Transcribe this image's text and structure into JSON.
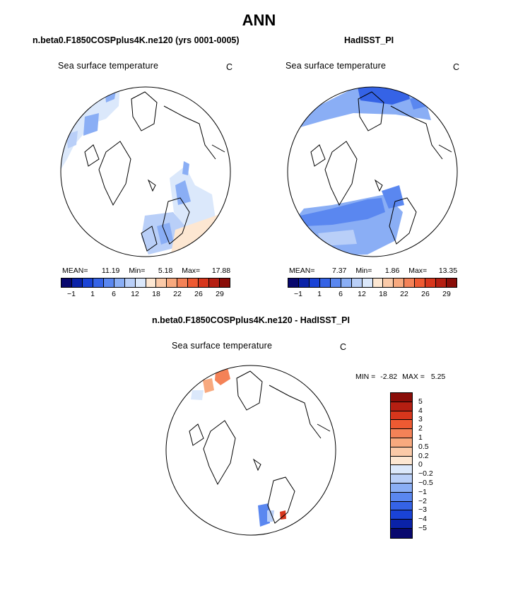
{
  "title": "ANN",
  "panels": {
    "left": {
      "title": "n.beta0.F1850COSPplus4K.ne120 (yrs 0001-0005)",
      "variable": "Sea surface temperature",
      "units": "C",
      "mean_label": "MEAN=",
      "mean": "11.19",
      "min_label": "Min=",
      "min": "5.18",
      "max_label": "Max=",
      "max": "17.88"
    },
    "right": {
      "title": "HadISST_PI",
      "variable": "Sea surface temperature",
      "units": "C",
      "mean_label": "MEAN=",
      "mean": "7.37",
      "min_label": "Min=",
      "min": "1.86",
      "max_label": "Max=",
      "max": "13.35"
    },
    "diff": {
      "title": "n.beta0.F1850COSPplus4K.ne120 - HadISST_PI",
      "variable": "Sea surface temperature",
      "units": "C",
      "min_label": "MIN =",
      "min": "-2.82",
      "max_label": "MAX =",
      "max": "5.25"
    }
  },
  "colorbar_abs": {
    "colors": [
      "#08086e",
      "#0a22a8",
      "#1a43d6",
      "#3563e6",
      "#5a87f0",
      "#8aaef5",
      "#b9cff8",
      "#dbe8fb",
      "#fde7d2",
      "#fbcaa8",
      "#f8a97e",
      "#f48257",
      "#ee5a32",
      "#d7361c",
      "#b51f12",
      "#8a0d08"
    ],
    "labels": [
      "-1",
      "1",
      "6",
      "12",
      "18",
      "22",
      "26",
      "29"
    ]
  },
  "colorbar_diff": {
    "colors": [
      "#8a0d08",
      "#b51f12",
      "#d7361c",
      "#ee5a32",
      "#f48257",
      "#f8a97e",
      "#fbcaa8",
      "#fde7d2",
      "#dbe8fb",
      "#b9cff8",
      "#8aaef5",
      "#5a87f0",
      "#3563e6",
      "#1a43d6",
      "#0a22a8",
      "#08086e"
    ],
    "labels": [
      "5",
      "4",
      "3",
      "2",
      "1",
      "0.5",
      "0.2",
      "0",
      "-0.2",
      "-0.5",
      "-1",
      "-2",
      "-3",
      "-4",
      "-5"
    ]
  },
  "chart_data": [
    {
      "type": "map",
      "title": "n.beta0.F1850COSPplus4K.ne120 (yrs 0001-0005)",
      "projection": "north polar stereographic",
      "variable": "Sea surface temperature",
      "units": "C",
      "mean": 11.19,
      "min": 5.18,
      "max": 17.88,
      "colorbar_levels": [
        -1,
        1,
        6,
        12,
        18,
        22,
        26,
        29
      ]
    },
    {
      "type": "map",
      "title": "HadISST_PI",
      "projection": "north polar stereographic",
      "variable": "Sea surface temperature",
      "units": "C",
      "mean": 7.37,
      "min": 1.86,
      "max": 13.35,
      "colorbar_levels": [
        -1,
        1,
        6,
        12,
        18,
        22,
        26,
        29
      ]
    },
    {
      "type": "map",
      "title": "n.beta0.F1850COSPplus4K.ne120 - HadISST_PI",
      "projection": "north polar stereographic",
      "variable": "Sea surface temperature",
      "units": "C",
      "min": -2.82,
      "max": 5.25,
      "colorbar_levels": [
        5,
        4,
        3,
        2,
        1,
        0.5,
        0.2,
        0,
        -0.2,
        -0.5,
        -1,
        -2,
        -3,
        -4,
        -5
      ]
    }
  ]
}
